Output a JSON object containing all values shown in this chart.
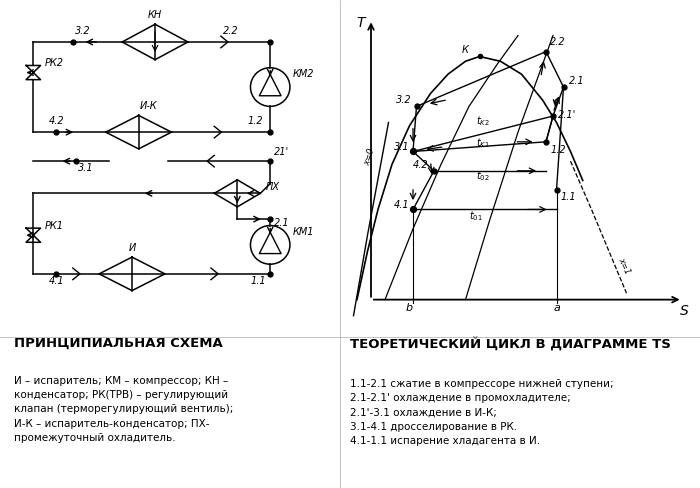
{
  "bg_color": "#ffffff",
  "left_title": "ПРИНЦИПИАЛЬНАЯ СХЕМА",
  "right_title": "ТЕОРЕТИЧЕСКИЙ ЦИКЛ В ДИАГРАММЕ TS",
  "left_desc": "И – испаритель; КМ – компрессор; КН –\nконденсатор; РК(ТРВ) – регулирующий\nклапан (терморегулирующий вентиль);\nИ-К – испаритель-конденсатор; ПХ-\nпромежуточный охладитель.",
  "right_desc": "1.1-2.1 сжатие в компрессоре нижней ступени;\n2.1-2.1' охлаждение в промохладителе;\n2.1'-3.1 охлаждение в И-К;\n3.1-4.1 дросселирование в РК.\n4.1-1.1 испарение хладагента в И."
}
